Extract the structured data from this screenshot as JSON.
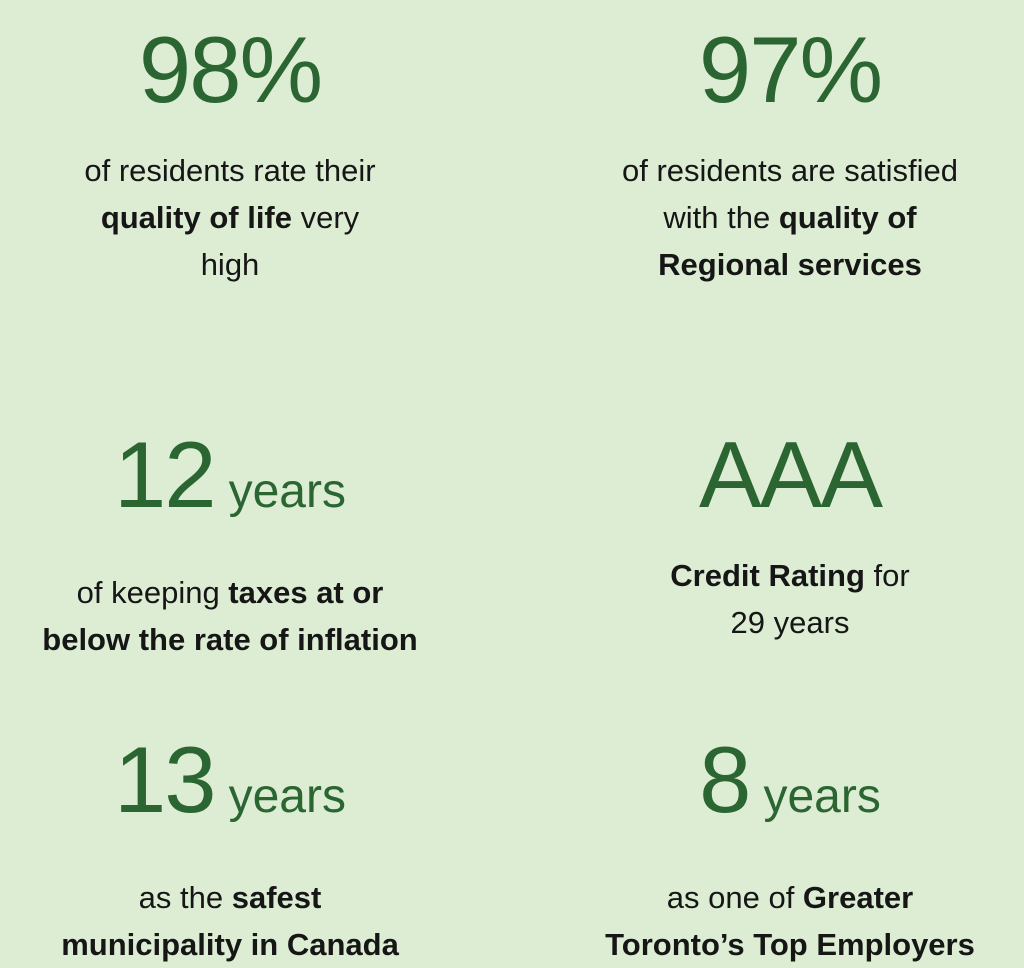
{
  "stats": [
    {
      "value": "98%",
      "unit": null,
      "lines": [
        [
          {
            "text": "of residents rate their",
            "bold": false
          }
        ],
        [
          {
            "text": "quality of life",
            "bold": true
          },
          {
            "text": " very",
            "bold": false
          }
        ],
        [
          {
            "text": "high",
            "bold": false
          }
        ]
      ]
    },
    {
      "value": "97%",
      "unit": null,
      "lines": [
        [
          {
            "text": "of residents are satisfied",
            "bold": false
          }
        ],
        [
          {
            "text": "with the ",
            "bold": false
          },
          {
            "text": "quality of",
            "bold": true
          }
        ],
        [
          {
            "text": "Regional services",
            "bold": true
          }
        ]
      ]
    },
    {
      "value": "12",
      "unit": "years",
      "lines": [
        [
          {
            "text": "of keeping ",
            "bold": false
          },
          {
            "text": "taxes at or",
            "bold": true
          }
        ],
        [
          {
            "text": "below the rate of inflation",
            "bold": true
          }
        ]
      ]
    },
    {
      "value": "AAA",
      "unit": null,
      "lines": [
        [
          {
            "text": "Credit Rating",
            "bold": true
          },
          {
            "text": " for",
            "bold": false
          }
        ],
        [
          {
            "text": "29 years",
            "bold": false
          }
        ]
      ]
    },
    {
      "value": "13",
      "unit": "years",
      "lines": [
        [
          {
            "text": "as the ",
            "bold": false
          },
          {
            "text": "safest",
            "bold": true
          }
        ],
        [
          {
            "text": "municipality in Canada",
            "bold": true
          }
        ]
      ]
    },
    {
      "value": "8",
      "unit": "years",
      "lines": [
        [
          {
            "text": "as one of ",
            "bold": false
          },
          {
            "text": "Greater",
            "bold": true
          }
        ],
        [
          {
            "text": "Toronto’s Top Employers",
            "bold": true
          }
        ]
      ]
    }
  ]
}
